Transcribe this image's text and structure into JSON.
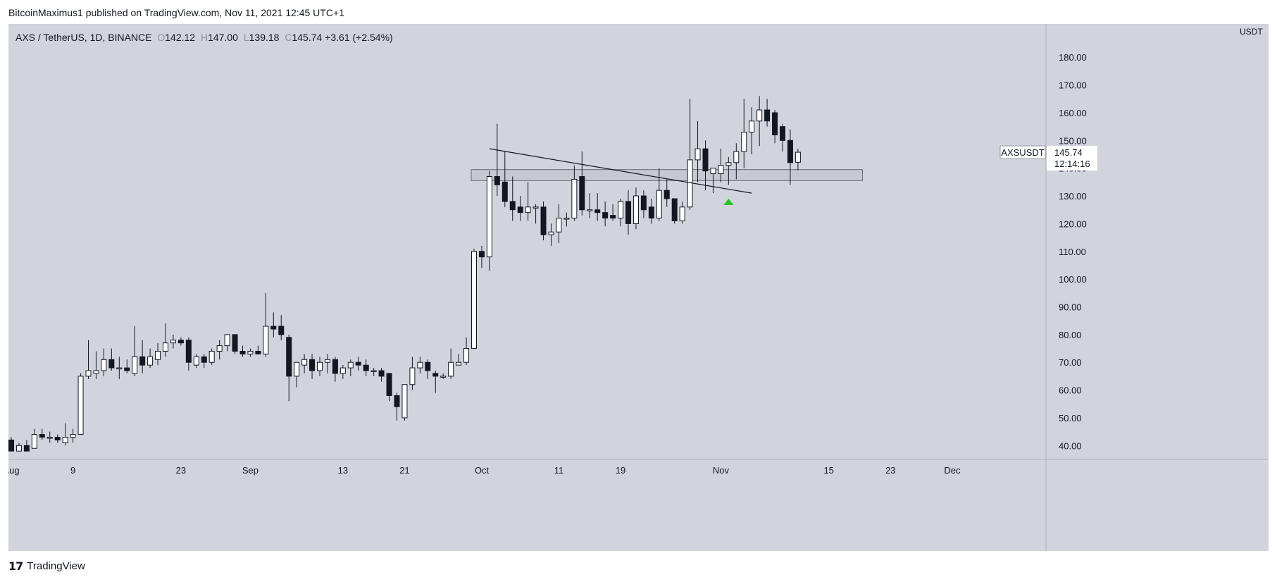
{
  "header": {
    "published_by": "BitcoinMaximus1 published on TradingView.com, Nov 11, 2021 12:45 UTC+1"
  },
  "legend": {
    "symbol": "AXS / TetherUS, 1D, BINANCE",
    "o_label": "O",
    "o_value": "142.12",
    "h_label": "H",
    "h_value": "147.00",
    "l_label": "L",
    "l_value": "139.18",
    "c_label": "C",
    "c_value": "145.74",
    "change": "+3.61 (+2.54%)"
  },
  "footer": {
    "brand": "TradingView",
    "logo_icon": "tradingview-logo-icon"
  },
  "colors": {
    "background": "#d1d4dc",
    "up_fill": "#ffffff",
    "down_fill": "#131722",
    "candle_outline": "#131722",
    "marker": "#22c521"
  },
  "chart_data": {
    "type": "candlestick",
    "symbol_label": "AXSUSDT",
    "last_price": "145.74",
    "countdown": "12:14:16",
    "currency": "USDT",
    "ylim": [
      35,
      192
    ],
    "y_ticks": [
      "40.00",
      "50.00",
      "60.00",
      "70.00",
      "80.00",
      "90.00",
      "100.00",
      "110.00",
      "120.00",
      "130.00",
      "140.00",
      "150.00",
      "160.00",
      "170.00",
      "180.00"
    ],
    "x_ticks": [
      {
        "label": "Aug",
        "day": 0
      },
      {
        "label": "9",
        "day": 8
      },
      {
        "label": "23",
        "day": 22
      },
      {
        "label": "Sep",
        "day": 31
      },
      {
        "label": "13",
        "day": 43
      },
      {
        "label": "21",
        "day": 51
      },
      {
        "label": "Oct",
        "day": 61
      },
      {
        "label": "11",
        "day": 71
      },
      {
        "label": "19",
        "day": 79
      },
      {
        "label": "Nov",
        "day": 92
      },
      {
        "label": "15",
        "day": 106
      },
      {
        "label": "23",
        "day": 114
      },
      {
        "label": "Dec",
        "day": 122
      }
    ],
    "candles": [
      {
        "d": 0,
        "o": 42,
        "h": 43,
        "l": 38,
        "c": 38
      },
      {
        "d": 1,
        "o": 38,
        "h": 41,
        "l": 38,
        "c": 40
      },
      {
        "d": 2,
        "o": 40,
        "h": 42,
        "l": 39,
        "c": 38
      },
      {
        "d": 3,
        "o": 39,
        "h": 46,
        "l": 39,
        "c": 44
      },
      {
        "d": 4,
        "o": 44,
        "h": 46,
        "l": 42,
        "c": 43
      },
      {
        "d": 5,
        "o": 43,
        "h": 45,
        "l": 41,
        "c": 43
      },
      {
        "d": 6,
        "o": 43,
        "h": 44,
        "l": 41,
        "c": 42
      },
      {
        "d": 7,
        "o": 41,
        "h": 48,
        "l": 40,
        "c": 43
      },
      {
        "d": 8,
        "o": 43,
        "h": 46,
        "l": 41,
        "c": 44
      },
      {
        "d": 9,
        "o": 44,
        "h": 66,
        "l": 44,
        "c": 65
      },
      {
        "d": 10,
        "o": 65,
        "h": 78,
        "l": 64,
        "c": 67
      },
      {
        "d": 11,
        "o": 66,
        "h": 74,
        "l": 64,
        "c": 67
      },
      {
        "d": 12,
        "o": 67,
        "h": 75,
        "l": 65,
        "c": 71
      },
      {
        "d": 13,
        "o": 71,
        "h": 75,
        "l": 67,
        "c": 68
      },
      {
        "d": 14,
        "o": 68,
        "h": 72,
        "l": 64,
        "c": 68
      },
      {
        "d": 15,
        "o": 68,
        "h": 71,
        "l": 66,
        "c": 67
      },
      {
        "d": 16,
        "o": 66,
        "h": 83,
        "l": 65,
        "c": 72
      },
      {
        "d": 17,
        "o": 72,
        "h": 78,
        "l": 66,
        "c": 69
      },
      {
        "d": 18,
        "o": 69,
        "h": 75,
        "l": 68,
        "c": 72
      },
      {
        "d": 19,
        "o": 71,
        "h": 77,
        "l": 69,
        "c": 74
      },
      {
        "d": 20,
        "o": 74,
        "h": 84,
        "l": 72,
        "c": 77
      },
      {
        "d": 21,
        "o": 77,
        "h": 80,
        "l": 75,
        "c": 78
      },
      {
        "d": 22,
        "o": 78,
        "h": 79,
        "l": 76,
        "c": 77
      },
      {
        "d": 23,
        "o": 78,
        "h": 79,
        "l": 67,
        "c": 70
      },
      {
        "d": 24,
        "o": 69,
        "h": 73,
        "l": 68,
        "c": 72
      },
      {
        "d": 25,
        "o": 72,
        "h": 73,
        "l": 68,
        "c": 70
      },
      {
        "d": 26,
        "o": 70,
        "h": 75,
        "l": 69,
        "c": 74
      },
      {
        "d": 27,
        "o": 74,
        "h": 78,
        "l": 71,
        "c": 76
      },
      {
        "d": 28,
        "o": 76,
        "h": 80,
        "l": 74,
        "c": 80
      },
      {
        "d": 29,
        "o": 80,
        "h": 80,
        "l": 73,
        "c": 74
      },
      {
        "d": 30,
        "o": 74,
        "h": 76,
        "l": 72,
        "c": 73
      },
      {
        "d": 31,
        "o": 73,
        "h": 75,
        "l": 72,
        "c": 74
      },
      {
        "d": 32,
        "o": 74,
        "h": 76,
        "l": 73,
        "c": 73
      },
      {
        "d": 33,
        "o": 73,
        "h": 95,
        "l": 72,
        "c": 83
      },
      {
        "d": 34,
        "o": 83,
        "h": 88,
        "l": 79,
        "c": 82
      },
      {
        "d": 35,
        "o": 83,
        "h": 87,
        "l": 78,
        "c": 80
      },
      {
        "d": 36,
        "o": 79,
        "h": 80,
        "l": 56,
        "c": 65
      },
      {
        "d": 37,
        "o": 65,
        "h": 70,
        "l": 61,
        "c": 70
      },
      {
        "d": 38,
        "o": 69,
        "h": 73,
        "l": 66,
        "c": 71
      },
      {
        "d": 39,
        "o": 71,
        "h": 73,
        "l": 64,
        "c": 67
      },
      {
        "d": 40,
        "o": 67,
        "h": 72,
        "l": 65,
        "c": 70
      },
      {
        "d": 41,
        "o": 70,
        "h": 73,
        "l": 66,
        "c": 71
      },
      {
        "d": 42,
        "o": 71,
        "h": 72,
        "l": 63,
        "c": 66
      },
      {
        "d": 43,
        "o": 66,
        "h": 69,
        "l": 64,
        "c": 68
      },
      {
        "d": 44,
        "o": 68,
        "h": 71,
        "l": 65,
        "c": 70
      },
      {
        "d": 45,
        "o": 70,
        "h": 72,
        "l": 67,
        "c": 69
      },
      {
        "d": 46,
        "o": 69,
        "h": 71,
        "l": 65,
        "c": 67
      },
      {
        "d": 47,
        "o": 67,
        "h": 68,
        "l": 65,
        "c": 67
      },
      {
        "d": 48,
        "o": 67,
        "h": 68,
        "l": 63,
        "c": 65
      },
      {
        "d": 49,
        "o": 66,
        "h": 66,
        "l": 56,
        "c": 58
      },
      {
        "d": 50,
        "o": 58,
        "h": 59,
        "l": 49,
        "c": 54
      },
      {
        "d": 51,
        "o": 50,
        "h": 62,
        "l": 49,
        "c": 62
      },
      {
        "d": 52,
        "o": 62,
        "h": 72,
        "l": 60,
        "c": 68
      },
      {
        "d": 53,
        "o": 68,
        "h": 72,
        "l": 66,
        "c": 70
      },
      {
        "d": 54,
        "o": 70,
        "h": 71,
        "l": 64,
        "c": 67
      },
      {
        "d": 55,
        "o": 66,
        "h": 67,
        "l": 59,
        "c": 65
      },
      {
        "d": 56,
        "o": 65,
        "h": 66,
        "l": 64,
        "c": 65
      },
      {
        "d": 57,
        "o": 65,
        "h": 75,
        "l": 64,
        "c": 70
      },
      {
        "d": 58,
        "o": 69,
        "h": 73,
        "l": 69,
        "c": 70
      },
      {
        "d": 59,
        "o": 70,
        "h": 79,
        "l": 69,
        "c": 75
      },
      {
        "d": 60,
        "o": 75,
        "h": 111,
        "l": 75,
        "c": 110
      },
      {
        "d": 61,
        "o": 110,
        "h": 112,
        "l": 104,
        "c": 108
      },
      {
        "d": 62,
        "o": 108,
        "h": 139,
        "l": 103,
        "c": 137
      },
      {
        "d": 63,
        "o": 137,
        "h": 156,
        "l": 130,
        "c": 134
      },
      {
        "d": 64,
        "o": 135,
        "h": 146,
        "l": 126,
        "c": 128
      },
      {
        "d": 65,
        "o": 128,
        "h": 137,
        "l": 121,
        "c": 125
      },
      {
        "d": 66,
        "o": 126,
        "h": 130,
        "l": 121,
        "c": 124
      },
      {
        "d": 67,
        "o": 124,
        "h": 135,
        "l": 121,
        "c": 126
      },
      {
        "d": 68,
        "o": 126,
        "h": 127,
        "l": 120,
        "c": 126
      },
      {
        "d": 69,
        "o": 126,
        "h": 128,
        "l": 114,
        "c": 116
      },
      {
        "d": 70,
        "o": 116,
        "h": 120,
        "l": 112,
        "c": 117
      },
      {
        "d": 71,
        "o": 117,
        "h": 127,
        "l": 113,
        "c": 122
      },
      {
        "d": 72,
        "o": 122,
        "h": 124,
        "l": 119,
        "c": 122
      },
      {
        "d": 73,
        "o": 122,
        "h": 141,
        "l": 121,
        "c": 136
      },
      {
        "d": 74,
        "o": 137,
        "h": 146,
        "l": 123,
        "c": 125
      },
      {
        "d": 75,
        "o": 125,
        "h": 131,
        "l": 122,
        "c": 125
      },
      {
        "d": 76,
        "o": 125,
        "h": 131,
        "l": 121,
        "c": 124
      },
      {
        "d": 77,
        "o": 124,
        "h": 128,
        "l": 119,
        "c": 122
      },
      {
        "d": 78,
        "o": 123,
        "h": 127,
        "l": 121,
        "c": 122
      },
      {
        "d": 79,
        "o": 122,
        "h": 129,
        "l": 119,
        "c": 128
      },
      {
        "d": 80,
        "o": 128,
        "h": 132,
        "l": 116,
        "c": 120
      },
      {
        "d": 81,
        "o": 120,
        "h": 133,
        "l": 118,
        "c": 130
      },
      {
        "d": 82,
        "o": 130,
        "h": 132,
        "l": 122,
        "c": 125
      },
      {
        "d": 83,
        "o": 126,
        "h": 129,
        "l": 120,
        "c": 122
      },
      {
        "d": 84,
        "o": 122,
        "h": 140,
        "l": 121,
        "c": 132
      },
      {
        "d": 85,
        "o": 132,
        "h": 136,
        "l": 126,
        "c": 129
      },
      {
        "d": 86,
        "o": 129,
        "h": 129,
        "l": 120,
        "c": 121
      },
      {
        "d": 87,
        "o": 121,
        "h": 128,
        "l": 120,
        "c": 126
      },
      {
        "d": 88,
        "o": 126,
        "h": 165,
        "l": 125,
        "c": 143
      },
      {
        "d": 89,
        "o": 143,
        "h": 157,
        "l": 135,
        "c": 147
      },
      {
        "d": 90,
        "o": 147,
        "h": 150,
        "l": 132,
        "c": 139
      },
      {
        "d": 91,
        "o": 138,
        "h": 139,
        "l": 131,
        "c": 140
      },
      {
        "d": 92,
        "o": 138,
        "h": 147,
        "l": 135,
        "c": 141
      },
      {
        "d": 93,
        "o": 141,
        "h": 144,
        "l": 134,
        "c": 142
      },
      {
        "d": 94,
        "o": 142,
        "h": 149,
        "l": 136,
        "c": 146
      },
      {
        "d": 95,
        "o": 146,
        "h": 165,
        "l": 140,
        "c": 153
      },
      {
        "d": 96,
        "o": 153,
        "h": 162,
        "l": 145,
        "c": 157
      },
      {
        "d": 97,
        "o": 157,
        "h": 166,
        "l": 148,
        "c": 161
      },
      {
        "d": 98,
        "o": 161,
        "h": 165,
        "l": 155,
        "c": 157
      },
      {
        "d": 99,
        "o": 160,
        "h": 161,
        "l": 149,
        "c": 152
      },
      {
        "d": 100,
        "o": 155,
        "h": 156,
        "l": 146,
        "c": 150
      },
      {
        "d": 101,
        "o": 150,
        "h": 154,
        "l": 134,
        "c": 142
      },
      {
        "d": 102,
        "o": 142.12,
        "h": 147,
        "l": 139.18,
        "c": 145.74
      }
    ],
    "trendline": {
      "from": {
        "d": 62,
        "price": 147
      },
      "to": {
        "d": 96,
        "price": 131
      }
    },
    "support_zone": {
      "from_day": 60,
      "to_day": 110,
      "low": 135.5,
      "high": 139.5
    },
    "marker": {
      "d": 93,
      "price": 128,
      "shape": "triangle-up"
    }
  }
}
